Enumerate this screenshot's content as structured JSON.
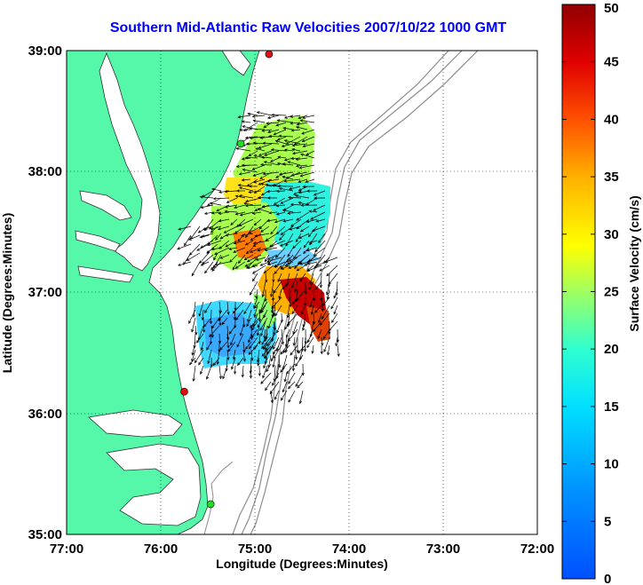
{
  "title": "Southern Mid-Atlantic Raw Velocities 2007/10/22 1000 GMT",
  "xaxis": {
    "label": "Longitude (Degrees:Minutes)",
    "ticks": [
      {
        "value": -77,
        "label": "77:00"
      },
      {
        "value": -76,
        "label": "76:00"
      },
      {
        "value": -75,
        "label": "75:00"
      },
      {
        "value": -74,
        "label": "74:00"
      },
      {
        "value": -73,
        "label": "73:00"
      },
      {
        "value": -72,
        "label": "72:00"
      }
    ]
  },
  "yaxis": {
    "label": "Latitude (Degrees:Minutes)",
    "ticks": [
      {
        "value": 35,
        "label": "35:00"
      },
      {
        "value": 36,
        "label": "36:00"
      },
      {
        "value": 37,
        "label": "37:00"
      },
      {
        "value": 38,
        "label": "38:00"
      },
      {
        "value": 39,
        "label": "39:00"
      }
    ]
  },
  "colorbar": {
    "label": "Surface Velocity (cm/s)",
    "min": 0,
    "max": 50,
    "ticks": [
      {
        "value": 0,
        "label": "0"
      },
      {
        "value": 5,
        "label": "5"
      },
      {
        "value": 10,
        "label": "10"
      },
      {
        "value": 15,
        "label": "15"
      },
      {
        "value": 20,
        "label": "20"
      },
      {
        "value": 25,
        "label": "25"
      },
      {
        "value": 30,
        "label": "30"
      },
      {
        "value": 35,
        "label": "35"
      },
      {
        "value": 40,
        "label": "40"
      },
      {
        "value": 45,
        "label": "45"
      },
      {
        "value": 50,
        "label": "50"
      }
    ]
  },
  "colors": {
    "land": "#55f7a9",
    "bathymetry": "#8c8c8c",
    "station_red": "#e01010",
    "station_green": "#22dd22",
    "title": "#0000ff"
  },
  "stations": [
    {
      "color": "red",
      "lon": -74.85,
      "lat": 38.97
    },
    {
      "color": "green",
      "lon": -75.15,
      "lat": 38.23
    },
    {
      "color": "red",
      "lon": -75.75,
      "lat": 36.18
    },
    {
      "color": "green",
      "lon": -75.47,
      "lat": 35.25
    }
  ],
  "chart_data": {
    "type": "heatmap",
    "title": "Southern Mid-Atlantic Raw Velocities 2007/10/22 1000 GMT",
    "xlabel": "Longitude (Degrees:Minutes)",
    "ylabel": "Latitude (Degrees:Minutes)",
    "xlim": [
      -77,
      -72
    ],
    "ylim": [
      35,
      39
    ],
    "grid": true,
    "colorbar_range": [
      0,
      50
    ],
    "speed_patches": [
      {
        "lon": -75.05,
        "lat": 37.6,
        "speed": 24
      },
      {
        "lon": -74.65,
        "lat": 38.1,
        "speed": 18
      },
      {
        "lon": -75.1,
        "lat": 37.35,
        "speed": 37
      },
      {
        "lon": -74.45,
        "lat": 36.85,
        "speed": 45
      },
      {
        "lon": -74.75,
        "lat": 37.1,
        "speed": 25
      },
      {
        "lon": -75.2,
        "lat": 36.6,
        "speed": 9
      },
      {
        "lon": -74.9,
        "lat": 37.55,
        "speed": 14
      }
    ]
  }
}
